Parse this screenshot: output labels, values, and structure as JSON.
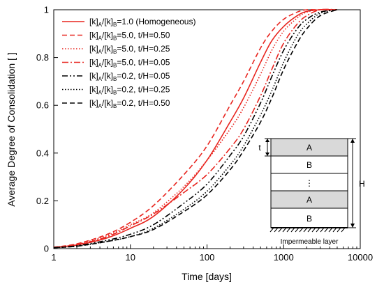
{
  "chart_data": {
    "type": "line",
    "x_scale": "log",
    "xlim": [
      1,
      10000
    ],
    "ylim": [
      0,
      1
    ],
    "xlabel": "Time [days]",
    "ylabel": "Average Degree of Consolidation [ ]",
    "x_ticks": [
      "1",
      "10",
      "100",
      "1000",
      "10000"
    ],
    "y_ticks": [
      "0",
      "0.2",
      "0.4",
      "0.6",
      "0.8",
      "1"
    ],
    "grid": false,
    "legend_position": "top-left",
    "series": [
      {
        "name": "[k]A/[k]B=1.0 (Homogeneous)",
        "legend": {
          "sub1": "A",
          "mid": "/[k]",
          "sub2": "B",
          "rest": "=1.0 (Homogeneous)"
        },
        "color": "#e8251f",
        "dash": "solid",
        "x": [
          1,
          2,
          5,
          10,
          20,
          50,
          100,
          200,
          300,
          500,
          700,
          1000,
          1500,
          2000,
          3000,
          5000
        ],
        "y": [
          0.005,
          0.015,
          0.045,
          0.085,
          0.135,
          0.25,
          0.37,
          0.53,
          0.63,
          0.78,
          0.87,
          0.93,
          0.975,
          0.993,
          1.0,
          1.0
        ]
      },
      {
        "name": "[k]A/[k]B=5.0, t/H=0.50",
        "legend": {
          "sub1": "A",
          "mid": "/[k]",
          "sub2": "B",
          "rest": "=5.0, t/H=0.50"
        },
        "color": "#e8251f",
        "dash": "dashed",
        "x": [
          1,
          2,
          5,
          10,
          20,
          50,
          100,
          200,
          300,
          500,
          700,
          1000,
          1500,
          2000,
          3000,
          5000
        ],
        "y": [
          0.006,
          0.02,
          0.06,
          0.11,
          0.18,
          0.31,
          0.43,
          0.6,
          0.7,
          0.84,
          0.91,
          0.96,
          0.99,
          1.0,
          1.0,
          1.0
        ]
      },
      {
        "name": "[k]A/[k]B=5.0, t/H=0.25",
        "legend": {
          "sub1": "A",
          "mid": "/[k]",
          "sub2": "B",
          "rest": "=5.0, t/H=0.25"
        },
        "color": "#e8251f",
        "dash": "dotted",
        "x": [
          1,
          2,
          5,
          10,
          20,
          50,
          100,
          200,
          300,
          500,
          700,
          1000,
          1500,
          2000,
          3000,
          5000
        ],
        "y": [
          0.006,
          0.018,
          0.055,
          0.1,
          0.15,
          0.26,
          0.37,
          0.5,
          0.59,
          0.73,
          0.83,
          0.91,
          0.965,
          0.99,
          1.0,
          1.0
        ]
      },
      {
        "name": "[k]A/[k]B=5.0, t/H=0.05",
        "legend": {
          "sub1": "A",
          "mid": "/[k]",
          "sub2": "B",
          "rest": "=5.0, t/H=0.05"
        },
        "color": "#e8251f",
        "dash": "dashdot",
        "x": [
          1,
          2,
          5,
          10,
          20,
          50,
          100,
          200,
          300,
          500,
          700,
          1000,
          1500,
          2000,
          3000,
          5000
        ],
        "y": [
          0.005,
          0.016,
          0.05,
          0.095,
          0.145,
          0.235,
          0.31,
          0.42,
          0.5,
          0.64,
          0.75,
          0.86,
          0.94,
          0.975,
          1.0,
          1.0
        ]
      },
      {
        "name": "[k]A/[k]B=0.2, t/H=0.05",
        "legend": {
          "sub1": "A",
          "mid": "/[k]",
          "sub2": "B",
          "rest": "=0.2, t/H=0.05"
        },
        "color": "#000000",
        "dash": "dashdotdot",
        "x": [
          1,
          2,
          5,
          10,
          20,
          50,
          100,
          200,
          300,
          500,
          700,
          1000,
          1500,
          2000,
          3000,
          5000
        ],
        "y": [
          0.004,
          0.012,
          0.035,
          0.06,
          0.1,
          0.19,
          0.27,
          0.39,
          0.47,
          0.61,
          0.72,
          0.83,
          0.92,
          0.96,
          0.99,
          1.0
        ]
      },
      {
        "name": "[k]A/[k]B=0.2, t/H=0.25",
        "legend": {
          "sub1": "A",
          "mid": "/[k]",
          "sub2": "B",
          "rest": "=0.2, t/H=0.25"
        },
        "color": "#000000",
        "dash": "dotted",
        "x": [
          1,
          2,
          5,
          10,
          20,
          50,
          100,
          200,
          300,
          500,
          700,
          1000,
          1500,
          2000,
          3000,
          5000
        ],
        "y": [
          0.004,
          0.01,
          0.03,
          0.05,
          0.085,
          0.165,
          0.24,
          0.35,
          0.43,
          0.56,
          0.66,
          0.78,
          0.89,
          0.94,
          0.985,
          1.0
        ]
      },
      {
        "name": "[k]A/[k]B=0.2, t/H=0.50",
        "legend": {
          "sub1": "A",
          "mid": "/[k]",
          "sub2": "B",
          "rest": "=0.2, t/H=0.50"
        },
        "color": "#000000",
        "dash": "dashed",
        "x": [
          1,
          2,
          5,
          10,
          20,
          50,
          100,
          200,
          300,
          500,
          700,
          1000,
          1500,
          2000,
          3000,
          5000
        ],
        "y": [
          0.004,
          0.01,
          0.03,
          0.05,
          0.08,
          0.155,
          0.225,
          0.33,
          0.41,
          0.53,
          0.63,
          0.75,
          0.86,
          0.92,
          0.975,
          1.0
        ]
      }
    ]
  },
  "inset": {
    "layer_top": "A",
    "layer_second": "B",
    "ellipsis": "⋮",
    "layer_fourth": "A",
    "layer_bottom": "B",
    "thickness_label": "t",
    "height_label": "H",
    "base_label": "Impermeable layer",
    "fill_color": "#d9d9d9"
  }
}
